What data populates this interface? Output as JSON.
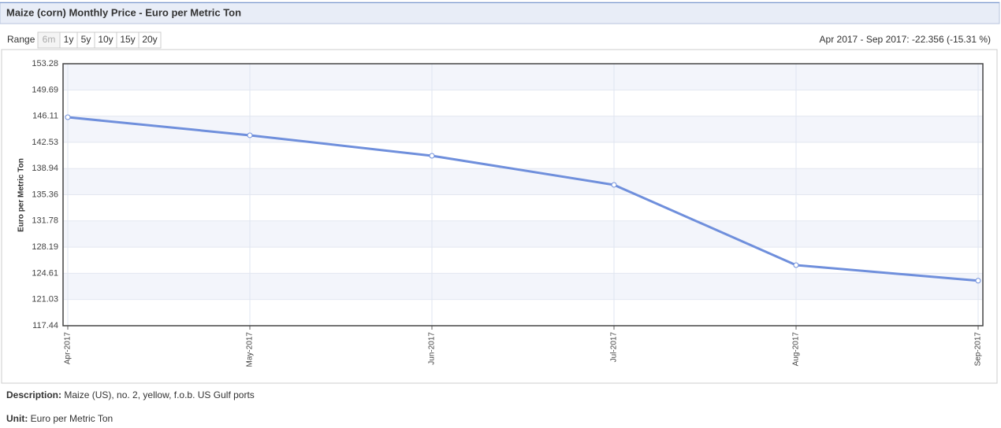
{
  "header": {
    "title": "Maize (corn) Monthly Price - Euro per Metric Ton"
  },
  "range": {
    "label": "Range",
    "buttons": [
      "6m",
      "1y",
      "5y",
      "10y",
      "15y",
      "20y"
    ],
    "summary": "Apr 2017 - Sep 2017: -22.356 (-15.31 %)"
  },
  "chart_data": {
    "type": "line",
    "ylabel": "Euro per Metric Ton",
    "categories": [
      "Apr-2017",
      "May-2017",
      "Jun-2017",
      "Jul-2017",
      "Aug-2017",
      "Sep-2017"
    ],
    "series": [
      {
        "name": "Maize",
        "color": "#6f8fdc",
        "values": [
          145.96,
          143.49,
          140.69,
          136.71,
          125.73,
          123.6
        ]
      }
    ],
    "ylim": [
      117.44,
      153.28
    ],
    "yticks": [
      117.44,
      121.03,
      124.61,
      128.19,
      131.78,
      135.36,
      138.94,
      142.53,
      146.11,
      149.69,
      153.28
    ],
    "grid": true
  },
  "footer": {
    "description_label": "Description:",
    "description": "Maize (US), no. 2, yellow, f.o.b. US Gulf ports",
    "unit_label": "Unit:",
    "unit": "Euro per Metric Ton"
  }
}
